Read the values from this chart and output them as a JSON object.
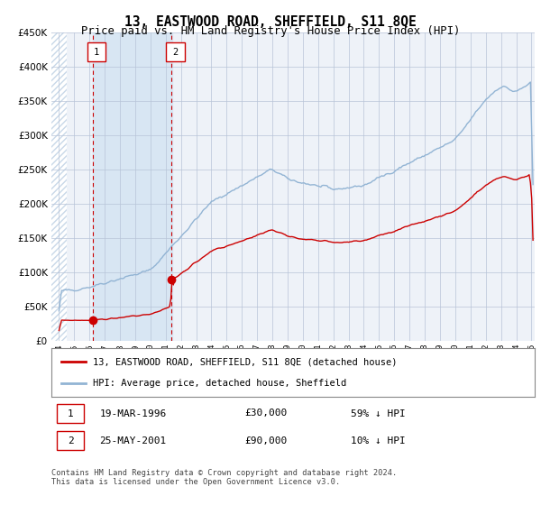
{
  "title": "13, EASTWOOD ROAD, SHEFFIELD, S11 8QE",
  "subtitle": "Price paid vs. HM Land Registry's House Price Index (HPI)",
  "ylim": [
    0,
    450000
  ],
  "yticks": [
    0,
    50000,
    100000,
    150000,
    200000,
    250000,
    300000,
    350000,
    400000,
    450000
  ],
  "x_start_year": 1994,
  "x_end_year": 2025,
  "hpi_color": "#92b4d4",
  "price_color": "#cc0000",
  "sale1_date_num": 1996.21,
  "sale1_price": 30000,
  "sale2_date_num": 2001.39,
  "sale2_price": 90000,
  "sale1_date_str": "19-MAR-1996",
  "sale1_price_str": "£30,000",
  "sale1_pct": "59% ↓ HPI",
  "sale2_date_str": "25-MAY-2001",
  "sale2_price_str": "£90,000",
  "sale2_pct": "10% ↓ HPI",
  "legend_line1": "13, EASTWOOD ROAD, SHEFFIELD, S11 8QE (detached house)",
  "legend_line2": "HPI: Average price, detached house, Sheffield",
  "footer": "Contains HM Land Registry data © Crown copyright and database right 2024.\nThis data is licensed under the Open Government Licence v3.0.",
  "bg_color": "#ffffff",
  "plot_bg_color": "#eef2f8",
  "shade_color": "#d8e6f3",
  "hatch_color": "#c8d8e8",
  "grid_color": "#b8c4d8"
}
